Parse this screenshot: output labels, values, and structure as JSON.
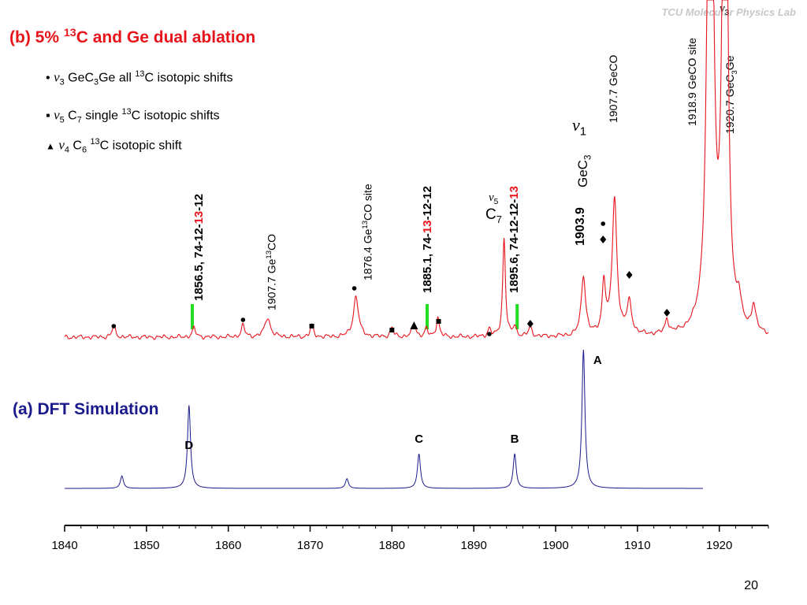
{
  "slide": {
    "title_b_prefix": "(b) 5% ",
    "title_b_sup": "13",
    "title_b_suffix": "C and Ge dual ablation",
    "title_a": "(a) DFT Simulation",
    "logo": "Molecular Physics Lab",
    "logo_mark": "TCU",
    "page_number": "20",
    "legend": [
      {
        "bullet": "•",
        "mode": "v",
        "mode_sub": "3",
        "pre": " GeC",
        "pre_sub": "3",
        "mid": "Ge all ",
        "sup": "13",
        "post": "C isotopic shifts"
      },
      {
        "bullet": "▪",
        "mode": "v",
        "mode_sub": "5",
        "pre": " C",
        "pre_sub": "7",
        "mid": " single ",
        "sup": "13",
        "post": "C isotopic  shifts"
      },
      {
        "bullet": "▲",
        "mode": "v",
        "mode_sub": "4",
        "pre": " C",
        "pre_sub": "6",
        "mid": " ",
        "sup": "13",
        "post": "C isotopic  shift"
      }
    ]
  },
  "chart_data": {
    "type": "line",
    "xlim": [
      1840,
      1926
    ],
    "x_ticks": [
      1840,
      1850,
      1860,
      1870,
      1880,
      1890,
      1900,
      1910,
      1920
    ],
    "grid": false,
    "series": [
      {
        "color": "#e8141b",
        "x_range": [
          1840,
          1926
        ],
        "baseline": 1.0,
        "peaks": [
          {
            "x": 1846.0,
            "h": 0.45,
            "w": 0.22
          },
          {
            "x": 1855.8,
            "h": 0.35,
            "w": 0.25
          },
          {
            "x": 1861.8,
            "h": 0.45,
            "w": 0.25
          },
          {
            "x": 1864.8,
            "h": 0.75,
            "w": 0.4
          },
          {
            "x": 1870.2,
            "h": 0.45,
            "w": 0.22
          },
          {
            "x": 1875.6,
            "h": 1.55,
            "w": 0.38
          },
          {
            "x": 1880.0,
            "h": 0.35,
            "w": 0.22
          },
          {
            "x": 1882.7,
            "h": 0.55,
            "w": 0.25
          },
          {
            "x": 1884.2,
            "h": 0.3,
            "w": 0.22
          },
          {
            "x": 1885.6,
            "h": 0.75,
            "w": 0.22
          },
          {
            "x": 1891.9,
            "h": 0.3,
            "w": 0.22
          },
          {
            "x": 1893.7,
            "h": 3.8,
            "w": 0.2
          },
          {
            "x": 1895.0,
            "h": 0.4,
            "w": 0.22
          },
          {
            "x": 1896.9,
            "h": 0.35,
            "w": 0.25
          },
          {
            "x": 1903.4,
            "h": 2.3,
            "w": 0.32
          },
          {
            "x": 1905.9,
            "h": 2.0,
            "w": 0.25
          },
          {
            "x": 1907.2,
            "h": 5.2,
            "w": 0.35
          },
          {
            "x": 1909.0,
            "h": 1.2,
            "w": 0.35
          },
          {
            "x": 1913.6,
            "h": 0.55,
            "w": 0.25
          },
          {
            "x": 1918.9,
            "h": 30.0,
            "w": 0.35
          },
          {
            "x": 1920.7,
            "h": 30.0,
            "w": 0.3
          },
          {
            "x": 1922.4,
            "h": 0.9,
            "w": 0.3
          },
          {
            "x": 1924.2,
            "h": 1.0,
            "w": 0.3
          }
        ]
      },
      {
        "color": "#1a1a8c",
        "x_range": [
          1840,
          1918
        ],
        "baseline": 0,
        "peaks": [
          {
            "x": 1847.0,
            "h": 0.09,
            "w": 0.22
          },
          {
            "x": 1855.2,
            "h": 0.6,
            "w": 0.22
          },
          {
            "x": 1874.5,
            "h": 0.07,
            "w": 0.22
          },
          {
            "x": 1883.3,
            "h": 0.25,
            "w": 0.22
          },
          {
            "x": 1895.0,
            "h": 0.25,
            "w": 0.22
          },
          {
            "x": 1903.4,
            "h": 1.0,
            "w": 0.22
          }
        ]
      }
    ],
    "peak_labels": [
      "A",
      "B",
      "C",
      "D"
    ],
    "annotations": {
      "l1856": {
        "value": "1856.5",
        "iso_pre": ", 74-12-",
        "iso_red": "13",
        "iso_post": "-12"
      },
      "l1907co": {
        "value": "1907.7",
        "sp": "  Ge",
        "sup": "13",
        "post": "CO"
      },
      "l1876": {
        "value": "1876.4",
        "sp": "  Ge",
        "sup": "13",
        "post": "CO site"
      },
      "l1885": {
        "value": "1885.1",
        "iso_pre": ", 74-",
        "iso_red": "13",
        "iso_post": "-12-12"
      },
      "l1895": {
        "value": "1895.6",
        "iso_pre": ", 74-12-12-",
        "iso_red": "13",
        "iso_post": ""
      },
      "l1903": {
        "value": "1903.9"
      },
      "l1907geco": {
        "value": "1907.7",
        "post": "  GeCO"
      },
      "l1918": {
        "value": "1918.9",
        "post": "  GeCO site"
      },
      "l1920": {
        "value": "1920.7",
        "sp": "  GeC",
        "sub": "3",
        "post": "Ge"
      },
      "geC3": {
        "pre": "GeC",
        "sub": "3"
      },
      "v1": {
        "mode": "v",
        "sub": "1"
      },
      "v5": {
        "mode": "v",
        "sub": "5"
      },
      "c7": {
        "pre": "C",
        "sub": "7"
      },
      "v3": {
        "mode": "v",
        "sub": "3"
      }
    }
  }
}
